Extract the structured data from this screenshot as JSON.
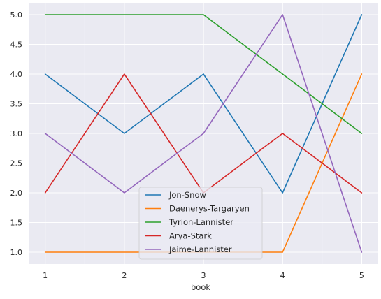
{
  "chart_data": {
    "type": "line",
    "x": [
      1,
      2,
      3,
      4,
      5
    ],
    "xlabel": "book",
    "ylabel": "",
    "xticks": [
      "1",
      "2",
      "3",
      "4",
      "5"
    ],
    "yticks": [
      "1.0",
      "1.5",
      "2.0",
      "2.5",
      "3.0",
      "3.5",
      "4.0",
      "4.5",
      "5.0"
    ],
    "xlim": [
      0.8,
      5.2
    ],
    "ylim": [
      0.8,
      5.2
    ],
    "grid": true,
    "legend_position": "lower-center",
    "background": "#eaeaf2",
    "series": [
      {
        "name": "Jon-Snow",
        "color": "#1f77b4",
        "values": [
          4,
          3,
          4,
          2,
          5
        ]
      },
      {
        "name": "Daenerys-Targaryen",
        "color": "#ff7f0e",
        "values": [
          1,
          1,
          1,
          1,
          4
        ]
      },
      {
        "name": "Tyrion-Lannister",
        "color": "#2ca02c",
        "values": [
          5,
          5,
          5,
          4,
          3
        ]
      },
      {
        "name": "Arya-Stark",
        "color": "#d62728",
        "values": [
          2,
          4,
          2,
          3,
          2
        ]
      },
      {
        "name": "Jaime-Lannister",
        "color": "#9467bd",
        "values": [
          3,
          2,
          3,
          5,
          1
        ]
      }
    ]
  }
}
